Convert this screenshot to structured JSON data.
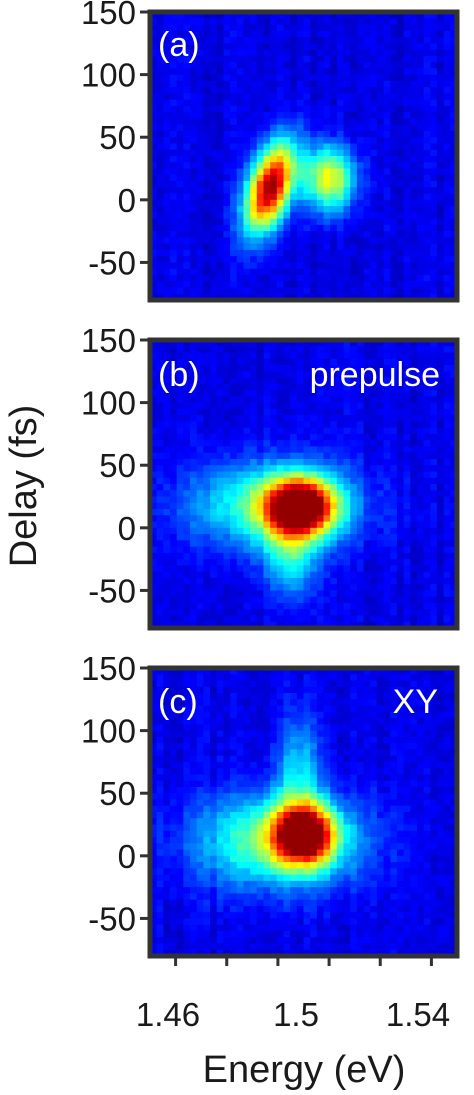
{
  "figure": {
    "ylabel": "Delay (fs)",
    "xlabel": "Energy (eV)",
    "xticks": [
      "1.46",
      "1.5",
      "1.54"
    ],
    "yticks": [
      "150",
      "100",
      "50",
      "0",
      "-50"
    ]
  },
  "colors": {
    "colormap": "jet",
    "background": "#0f2bd8",
    "frame": "#333333"
  },
  "chart_data": [
    {
      "type": "heatmap",
      "panel_label": "(a)",
      "annotation": "",
      "xlabel": "",
      "ylabel": "Delay (fs)",
      "xlim": [
        1.45,
        1.57
      ],
      "ylim": [
        -80,
        150
      ],
      "xticks": [
        1.46,
        1.5,
        1.54
      ],
      "yticks": [
        -50,
        0,
        50,
        100,
        150
      ],
      "peaks": [
        {
          "energy": 1.497,
          "delay": 10,
          "amplitude": 1.0,
          "sigma_energy": 0.006,
          "sigma_delay": 22,
          "tilt": -0.45
        },
        {
          "energy": 1.52,
          "delay": 17,
          "amplitude": 0.58,
          "sigma_energy": 0.007,
          "sigma_delay": 18,
          "tilt": 0
        }
      ]
    },
    {
      "type": "heatmap",
      "panel_label": "(b)",
      "annotation": "prepulse",
      "xlabel": "",
      "ylabel": "Delay (fs)",
      "xlim": [
        1.45,
        1.57
      ],
      "ylim": [
        -80,
        150
      ],
      "xticks": [
        1.46,
        1.5,
        1.54
      ],
      "yticks": [
        -50,
        0,
        50,
        100,
        150
      ],
      "peaks": [
        {
          "energy": 1.509,
          "delay": 17,
          "amplitude": 1.0,
          "sigma_energy": 0.009,
          "sigma_delay": 15,
          "tilt": 0
        },
        {
          "energy": 1.498,
          "delay": 18,
          "amplitude": 0.42,
          "sigma_energy": 0.022,
          "sigma_delay": 24,
          "tilt": 0
        },
        {
          "energy": 1.505,
          "delay": -20,
          "amplitude": 0.3,
          "sigma_energy": 0.007,
          "sigma_delay": 25,
          "tilt": 0
        }
      ]
    },
    {
      "type": "heatmap",
      "panel_label": "(c)",
      "annotation": "XY",
      "xlabel": "Energy (eV)",
      "ylabel": "Delay (fs)",
      "xlim": [
        1.45,
        1.57
      ],
      "ylim": [
        -80,
        150
      ],
      "xticks": [
        1.46,
        1.5,
        1.54
      ],
      "yticks": [
        -50,
        0,
        50,
        100,
        150
      ],
      "peaks": [
        {
          "energy": 1.51,
          "delay": 17,
          "amplitude": 1.0,
          "sigma_energy": 0.008,
          "sigma_delay": 16,
          "tilt": 0
        },
        {
          "energy": 1.5,
          "delay": 12,
          "amplitude": 0.45,
          "sigma_energy": 0.022,
          "sigma_delay": 26,
          "tilt": 0
        },
        {
          "energy": 1.508,
          "delay": 70,
          "amplitude": 0.25,
          "sigma_energy": 0.006,
          "sigma_delay": 30,
          "tilt": 0
        }
      ]
    }
  ]
}
